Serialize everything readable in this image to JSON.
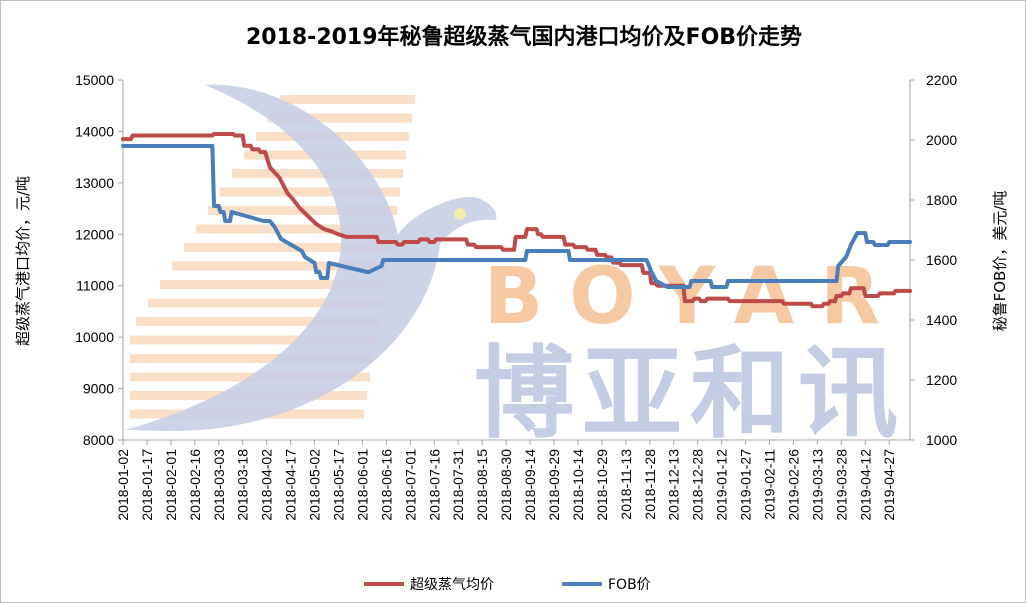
{
  "colors": {
    "domestic": "#be4b48",
    "fob": "#4a7ebb",
    "axis": "#a6a6a6",
    "watermark_blue": "#c5cde4",
    "watermark_orange": "#f7c9a3",
    "watermark_dot": "#f2eeaa"
  },
  "watermark": {
    "brand_latin": "BOYAR",
    "brand_cn": "博亚和讯",
    "icon": "swallow-bird-logo"
  },
  "chart_data": {
    "type": "line",
    "title": "2018-2019年秘鲁超级蒸气国内港口均价及FOB价走势",
    "ylabel_left": "超级蒸气港口均价，元/吨",
    "ylabel_right": "秘鲁FOB价，美元/吨",
    "ylim_left": [
      8000,
      15000
    ],
    "ylim_right": [
      1000,
      2200
    ],
    "yticks_left": [
      "8000",
      "9000",
      "10000",
      "11000",
      "12000",
      "13000",
      "14000",
      "15000"
    ],
    "yticks_right": [
      "1000",
      "1200",
      "1400",
      "1600",
      "1800",
      "2000",
      "2200"
    ],
    "xlim": [
      "2018-01-02",
      "2019-05-10"
    ],
    "x_tick_labels": [
      "2018-01-02",
      "2018-01-17",
      "2018-02-01",
      "2018-02-16",
      "2018-03-03",
      "2018-03-18",
      "2018-04-02",
      "2018-04-17",
      "2018-05-02",
      "2018-05-17",
      "2018-06-01",
      "2018-06-16",
      "2018-07-01",
      "2018-07-16",
      "2018-07-31",
      "2018-08-15",
      "2018-08-30",
      "2018-09-14",
      "2018-09-29",
      "2018-10-14",
      "2018-10-29",
      "2018-11-13",
      "2018-11-28",
      "2018-12-13",
      "2018-12-28",
      "2019-01-12",
      "2019-01-27",
      "2019-02-11",
      "2019-02-26",
      "2019-03-13",
      "2019-03-28",
      "2019-04-12",
      "2019-04-27"
    ],
    "legend_position": "bottom",
    "grid": false,
    "series": [
      {
        "name": "超级蒸气均价",
        "axis": "left",
        "x": [
          "2018-01-02",
          "2018-01-07",
          "2018-01-08",
          "2018-02-27",
          "2018-02-28",
          "2018-03-12",
          "2018-03-13",
          "2018-03-18",
          "2018-03-19",
          "2018-03-23",
          "2018-03-24",
          "2018-03-28",
          "2018-03-29",
          "2018-04-01",
          "2018-04-04",
          "2018-04-10",
          "2018-04-15",
          "2018-04-18",
          "2018-04-23",
          "2018-04-28",
          "2018-05-03",
          "2018-05-08",
          "2018-05-13",
          "2018-05-17",
          "2018-05-22",
          "2018-06-10",
          "2018-06-11",
          "2018-06-22",
          "2018-06-23",
          "2018-06-26",
          "2018-06-27",
          "2018-07-06",
          "2018-07-07",
          "2018-07-12",
          "2018-07-13",
          "2018-07-16",
          "2018-07-17",
          "2018-08-05",
          "2018-08-06",
          "2018-08-10",
          "2018-08-11",
          "2018-08-27",
          "2018-08-28",
          "2018-09-04",
          "2018-09-05",
          "2018-09-11",
          "2018-09-12",
          "2018-09-18",
          "2018-09-19",
          "2018-09-21",
          "2018-09-22",
          "2018-09-27",
          "2018-09-28",
          "2018-10-05",
          "2018-10-06",
          "2018-10-11",
          "2018-10-12",
          "2018-10-19",
          "2018-10-20",
          "2018-10-25",
          "2018-10-26",
          "2018-10-31",
          "2018-11-01",
          "2018-11-04",
          "2018-11-05",
          "2018-11-09",
          "2018-11-10",
          "2018-11-23",
          "2018-11-24",
          "2018-11-28",
          "2018-11-29",
          "2018-12-01",
          "2018-12-03",
          "2018-12-04",
          "2018-12-19",
          "2018-12-20",
          "2018-12-25",
          "2018-12-26",
          "2018-12-29",
          "2018-12-30",
          "2019-01-02",
          "2019-01-03",
          "2019-01-16",
          "2019-01-17",
          "2019-02-19",
          "2019-02-20",
          "2019-03-09",
          "2019-03-10",
          "2019-03-16",
          "2019-03-17",
          "2019-03-20",
          "2019-03-21",
          "2019-03-24",
          "2019-03-25",
          "2019-03-28",
          "2019-03-29",
          "2019-04-02",
          "2019-04-03",
          "2019-04-11",
          "2019-04-12",
          "2019-04-20",
          "2019-04-21",
          "2019-04-30",
          "2019-05-01",
          "2019-05-10"
        ],
        "y": [
          13850,
          13850,
          13920,
          13920,
          13950,
          13950,
          13920,
          13920,
          13720,
          13720,
          13650,
          13650,
          13600,
          13600,
          13300,
          13100,
          12800,
          12700,
          12500,
          12350,
          12200,
          12100,
          12050,
          12000,
          11950,
          11950,
          11850,
          11850,
          11800,
          11800,
          11850,
          11850,
          11900,
          11900,
          11850,
          11850,
          11900,
          11900,
          11800,
          11800,
          11750,
          11750,
          11700,
          11700,
          11950,
          11950,
          12100,
          12100,
          12000,
          12000,
          11950,
          11950,
          11950,
          11950,
          11800,
          11800,
          11750,
          11750,
          11700,
          11700,
          11600,
          11600,
          11550,
          11550,
          11450,
          11450,
          11400,
          11400,
          11250,
          11250,
          11050,
          11050,
          11000,
          11000,
          11000,
          10700,
          10700,
          10750,
          10750,
          10700,
          10700,
          10750,
          10750,
          10700,
          10700,
          10650,
          10650,
          10600,
          10600,
          10650,
          10650,
          10700,
          10700,
          10800,
          10800,
          10850,
          10850,
          10950,
          10950,
          10800,
          10800,
          10850,
          10850,
          10900,
          10900
        ]
      },
      {
        "name": "FOB价",
        "axis": "right",
        "x": [
          "2018-01-02",
          "2018-02-27",
          "2018-02-28",
          "2018-03-03",
          "2018-03-04",
          "2018-03-06",
          "2018-03-07",
          "2018-03-10",
          "2018-03-11",
          "2018-03-31",
          "2018-04-04",
          "2018-04-07",
          "2018-04-11",
          "2018-04-24",
          "2018-04-26",
          "2018-05-02",
          "2018-05-03",
          "2018-05-05",
          "2018-05-06",
          "2018-05-10",
          "2018-05-11",
          "2018-06-04",
          "2018-06-05",
          "2018-06-13",
          "2018-06-14",
          "2018-09-11",
          "2018-09-12",
          "2018-09-25",
          "2018-09-26",
          "2018-10-08",
          "2018-10-09",
          "2018-11-26",
          "2018-11-29",
          "2018-12-02",
          "2018-12-09",
          "2018-12-14",
          "2018-12-23",
          "2018-12-24",
          "2019-01-05",
          "2019-01-06",
          "2019-01-15",
          "2019-01-16",
          "2019-03-25",
          "2019-03-26",
          "2019-03-31",
          "2019-04-03",
          "2019-04-07",
          "2019-04-12",
          "2019-04-13",
          "2019-04-17",
          "2019-04-18",
          "2019-04-26",
          "2019-04-27",
          "2019-05-03",
          "2019-05-10"
        ],
        "y": [
          1980,
          1980,
          1780,
          1780,
          1760,
          1760,
          1730,
          1730,
          1760,
          1730,
          1730,
          1710,
          1670,
          1630,
          1610,
          1590,
          1560,
          1560,
          1540,
          1540,
          1590,
          1560,
          1560,
          1580,
          1600,
          1600,
          1630,
          1630,
          1630,
          1630,
          1600,
          1600,
          1560,
          1530,
          1510,
          1510,
          1510,
          1530,
          1530,
          1510,
          1510,
          1530,
          1530,
          1580,
          1610,
          1650,
          1690,
          1690,
          1660,
          1660,
          1650,
          1650,
          1660,
          1660,
          1660
        ]
      }
    ]
  }
}
